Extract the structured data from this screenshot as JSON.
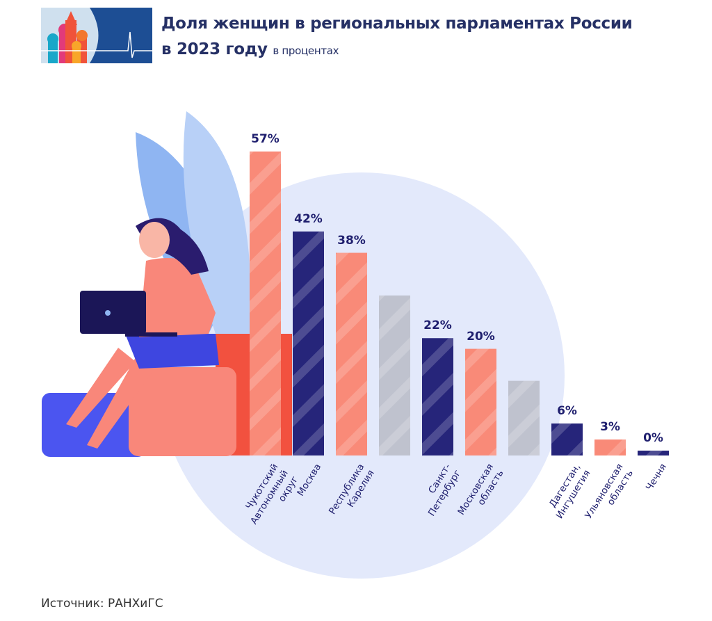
{
  "header": {
    "title_line1": "Доля женщин в региональных парламентах России",
    "title_line2": "в 2023 году",
    "subtitle": "в процентах"
  },
  "source": "Источник: РАНХиГС",
  "colors": {
    "salmon": "#f98a78",
    "navy": "#26257a",
    "grey": "#b8bbc6",
    "text": "#1f1f6e",
    "circle": "#e3e9fb"
  },
  "chart_data": {
    "type": "bar",
    "title": "Доля женщин в региональных парламентах России в 2023 году",
    "ylabel": "в процентах",
    "ylim": [
      0,
      60
    ],
    "grid": false,
    "bars": [
      {
        "category": "Чукотский\nАвтономный\nокруг",
        "value": 57,
        "label": "57%",
        "color": "salmon"
      },
      {
        "category": "Москва",
        "value": 42,
        "label": "42%",
        "color": "navy"
      },
      {
        "category": "Республика\nКарелия",
        "value": 38,
        "label": "38%",
        "color": "salmon"
      },
      {
        "category": "",
        "value": 30,
        "label": "",
        "color": "grey"
      },
      {
        "category": "Санкт-\nПетербург",
        "value": 22,
        "label": "22%",
        "color": "navy"
      },
      {
        "category": "Московская\nобласть",
        "value": 20,
        "label": "20%",
        "color": "salmon"
      },
      {
        "category": "",
        "value": 14,
        "label": "",
        "color": "grey"
      },
      {
        "category": "Дагестан,\nИнгушетия",
        "value": 6,
        "label": "6%",
        "color": "navy"
      },
      {
        "category": "Ульяновская\nобласть",
        "value": 3,
        "label": "3%",
        "color": "salmon"
      },
      {
        "category": "Чечня",
        "value": 0,
        "label": "0%",
        "color": "navy"
      }
    ]
  }
}
